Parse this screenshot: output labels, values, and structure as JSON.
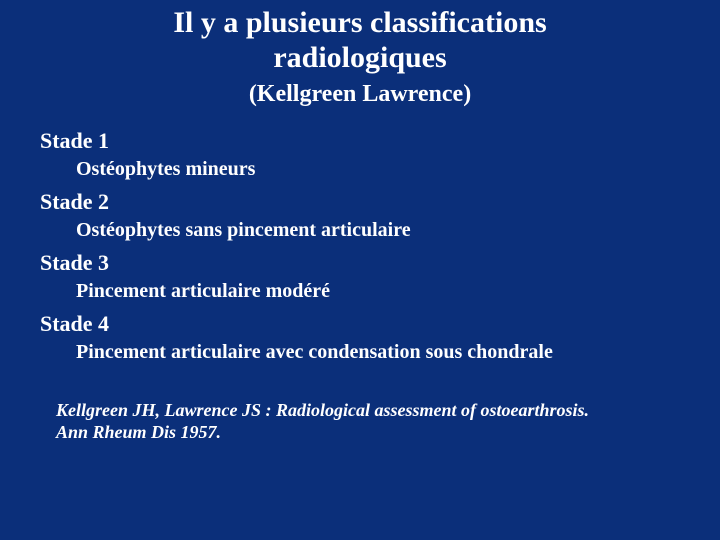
{
  "colors": {
    "background": "#0b2f7a",
    "text": "#ffffff"
  },
  "typography": {
    "title_fontsize": 30,
    "subtitle_fontsize": 24,
    "stage_heading_fontsize": 22,
    "stage_desc_fontsize": 20,
    "citation_fontsize": 18,
    "font_family": "Times New Roman"
  },
  "title_line1": "Il y a plusieurs classifications",
  "title_line2": "radiologiques",
  "subtitle": "(Kellgreen Lawrence)",
  "stages": {
    "s1": {
      "heading": "Stade 1",
      "desc": "Ostéophytes mineurs"
    },
    "s2": {
      "heading": "Stade 2",
      "desc": "Ostéophytes sans pincement articulaire"
    },
    "s3": {
      "heading": "Stade 3",
      "desc": "Pincement articulaire modéré"
    },
    "s4": {
      "heading": "Stade 4",
      "desc": "Pincement articulaire avec condensation sous chondrale"
    }
  },
  "citation_line1": "Kellgreen JH, Lawrence JS : Radiological assessment of ostoearthrosis.",
  "citation_line2": "Ann Rheum Dis 1957."
}
